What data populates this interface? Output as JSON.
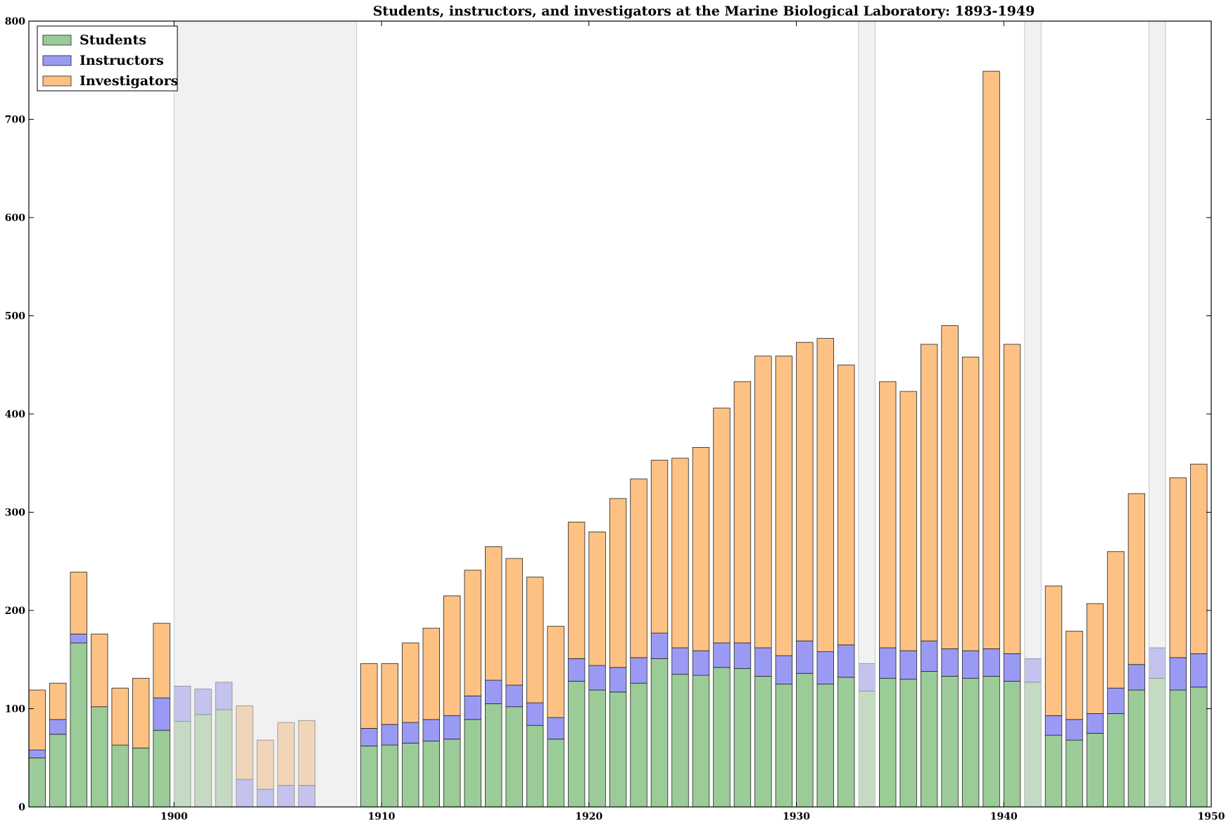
{
  "chart_data": {
    "type": "bar",
    "stacked": true,
    "title": "Students, instructors, and investigators at the Marine Biological Laboratory: 1893-1949",
    "xlabel": "",
    "ylabel": "",
    "xlim": [
      1893,
      1950
    ],
    "ylim": [
      0,
      800
    ],
    "xticks": [
      1900,
      1910,
      1920,
      1930,
      1940,
      1950
    ],
    "yticks": [
      0,
      100,
      200,
      300,
      400,
      500,
      600,
      700,
      800
    ],
    "grid": false,
    "legend_position": "top-left",
    "colors": {
      "students": "#9bcc97",
      "instructors": "#9a9af5",
      "investigators": "#fdc184",
      "shade": "#e5e5e5",
      "shade_edge": "#c8c8c8"
    },
    "shaded_ranges": [
      [
        1900,
        1908.8
      ],
      [
        1933,
        1933.8
      ],
      [
        1941,
        1941.8
      ],
      [
        1947,
        1947.8
      ]
    ],
    "years": [
      1893,
      1894,
      1895,
      1896,
      1897,
      1898,
      1899,
      1900,
      1901,
      1902,
      1903,
      1904,
      1905,
      1906,
      1909,
      1910,
      1911,
      1912,
      1913,
      1914,
      1915,
      1916,
      1917,
      1918,
      1919,
      1920,
      1921,
      1922,
      1923,
      1924,
      1925,
      1926,
      1927,
      1928,
      1929,
      1930,
      1931,
      1932,
      1933,
      1934,
      1935,
      1936,
      1937,
      1938,
      1939,
      1940,
      1941,
      1942,
      1943,
      1944,
      1945,
      1946,
      1947,
      1948,
      1949
    ],
    "series": [
      {
        "name": "Students",
        "values": [
          50,
          74,
          167,
          102,
          63,
          60,
          78,
          87,
          94,
          99,
          0,
          0,
          0,
          0,
          62,
          63,
          65,
          67,
          69,
          89,
          105,
          102,
          83,
          69,
          128,
          119,
          117,
          126,
          151,
          135,
          134,
          142,
          141,
          133,
          125,
          136,
          125,
          132,
          118,
          131,
          130,
          138,
          133,
          131,
          133,
          128,
          127,
          73,
          68,
          75,
          95,
          119,
          131,
          119,
          122
        ]
      },
      {
        "name": "Instructors",
        "values": [
          8,
          15,
          9,
          0,
          0,
          0,
          33,
          36,
          26,
          28,
          28,
          18,
          22,
          22,
          18,
          21,
          21,
          22,
          24,
          24,
          24,
          22,
          23,
          22,
          23,
          25,
          25,
          26,
          26,
          27,
          25,
          25,
          26,
          29,
          29,
          33,
          33,
          33,
          28,
          31,
          29,
          31,
          28,
          28,
          28,
          28,
          24,
          20,
          21,
          20,
          26,
          26,
          31,
          33,
          34
        ]
      },
      {
        "name": "Investigators",
        "values": [
          61,
          37,
          63,
          74,
          58,
          71,
          76,
          0,
          0,
          0,
          75,
          50,
          64,
          66,
          66,
          62,
          81,
          93,
          122,
          128,
          136,
          129,
          128,
          93,
          139,
          136,
          172,
          182,
          176,
          193,
          207,
          239,
          266,
          297,
          305,
          304,
          319,
          285,
          0,
          271,
          264,
          302,
          329,
          299,
          588,
          315,
          0,
          132,
          90,
          112,
          139,
          174,
          0,
          183,
          193
        ]
      }
    ]
  }
}
